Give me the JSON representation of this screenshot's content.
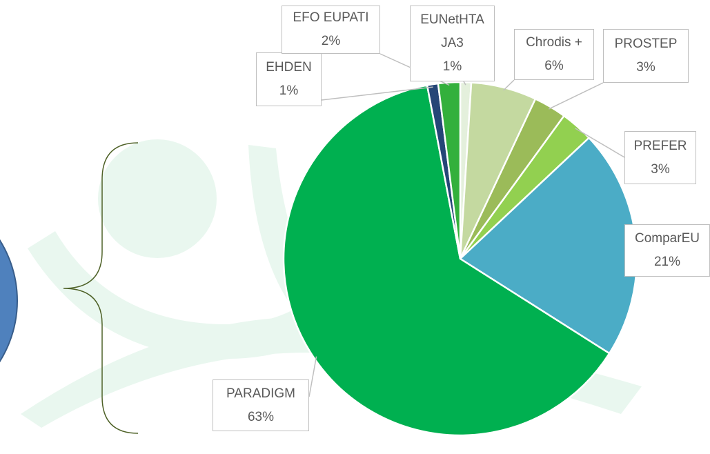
{
  "chart_data": {
    "type": "pie",
    "categories": [
      "EUNetHTA JA3",
      "Chrodis +",
      "PROSTEP",
      "PREFER",
      "ComparEU",
      "PARADIGM",
      "EHDEN",
      "EFO EUPATI"
    ],
    "values": [
      1,
      6,
      3,
      3,
      21,
      63,
      1,
      2
    ],
    "value_labels": [
      "1%",
      "6%",
      "3%",
      "3%",
      "21%",
      "63%",
      "1%",
      "2%"
    ],
    "colors": [
      "#e4f0dc",
      "#c4d9a0",
      "#9bbb59",
      "#92d050",
      "#4bacc6",
      "#00b050",
      "#254677",
      "#33b03c"
    ]
  }
}
